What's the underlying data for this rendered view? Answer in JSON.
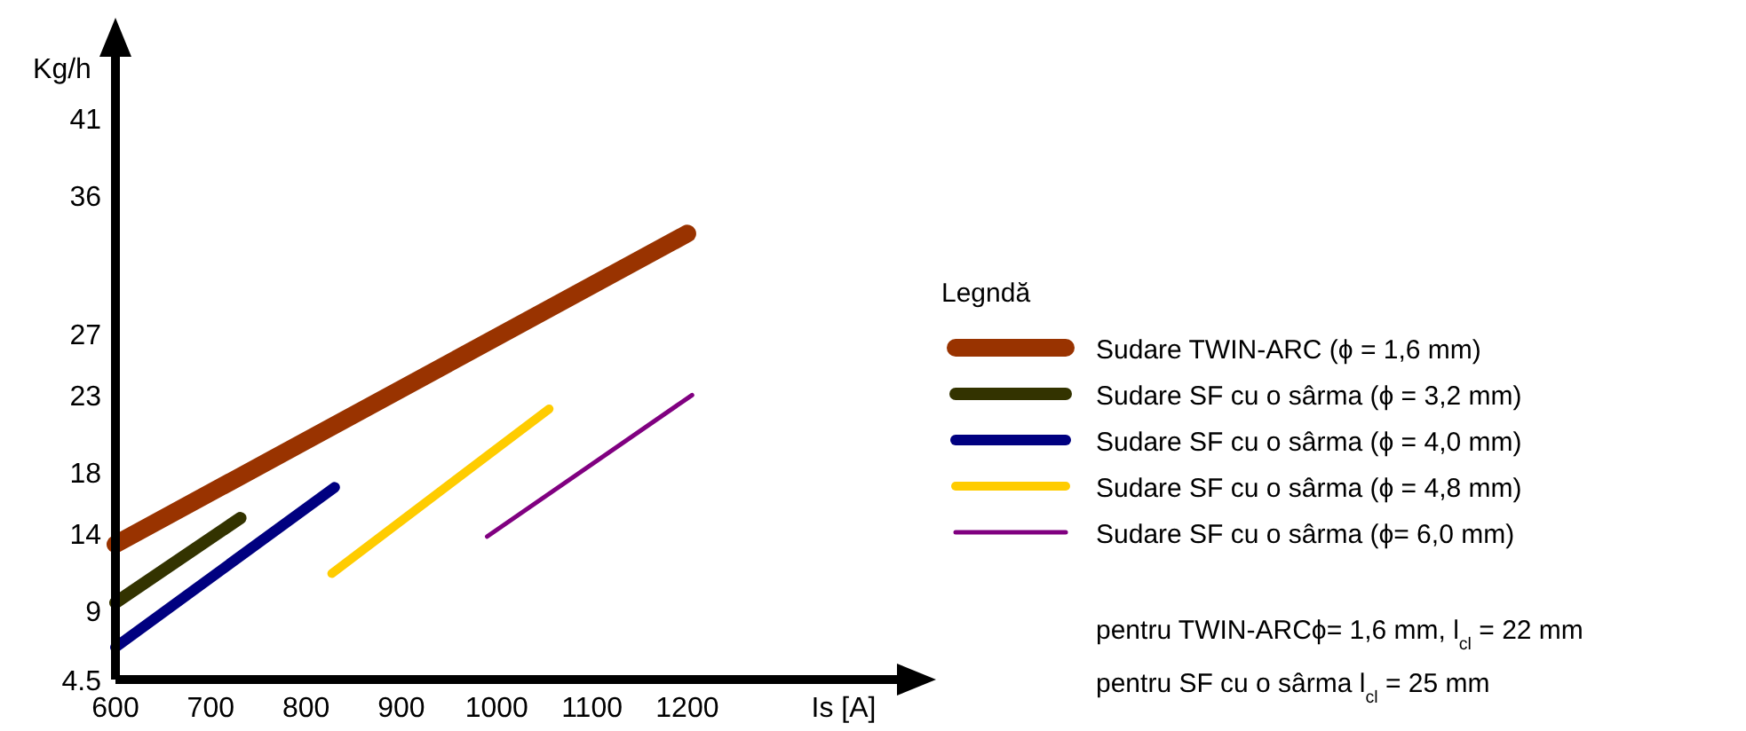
{
  "chart_data": {
    "type": "line",
    "xlabel": "Is [A]",
    "ylabel": "Kg/h",
    "legend_title": "Legndă",
    "legend": "right",
    "grid": false,
    "line_style": "solid",
    "xlim": [
      600,
      1420
    ],
    "xticks": [
      600,
      700,
      800,
      900,
      1000,
      1100,
      1200
    ],
    "ylim": [
      4.5,
      45
    ],
    "yticks": [
      4.5,
      9,
      14,
      18,
      23,
      27,
      36,
      41
    ],
    "series": [
      {
        "name": "Sudare TWIN-ARC (ϕ = 1,6 mm)",
        "color": "#993300",
        "x": [
          600,
          1200
        ],
        "values": [
          13.3,
          33.5
        ]
      },
      {
        "name": "Sudare SF cu o sârma (ϕ = 3,2 mm)",
        "color": "#333300",
        "x": [
          600,
          731
        ],
        "values": [
          9.5,
          15.0
        ]
      },
      {
        "name": "Sudare SF cu o sârma (ϕ = 4,0 mm)",
        "color": "#000080",
        "x": [
          600,
          830
        ],
        "values": [
          6.6,
          17.0
        ]
      },
      {
        "name": "Sudare SF cu o sârma (ϕ = 4,8 mm)",
        "color": "#ffcc00",
        "x": [
          827,
          1055
        ],
        "values": [
          11.4,
          22.1
        ]
      },
      {
        "name": "Sudare SF cu o sârma (ϕ= 6,0 mm)",
        "color": "#800080",
        "x": [
          990,
          1205
        ],
        "values": [
          13.8,
          23.0
        ]
      }
    ],
    "annotations": [
      "pentru  TWIN-ARCϕ= 1,6 mm, l$_{cl}$ = 22 mm",
      "pentru  SF cu o sârma l$_{cl}$ = 25 mm"
    ]
  }
}
